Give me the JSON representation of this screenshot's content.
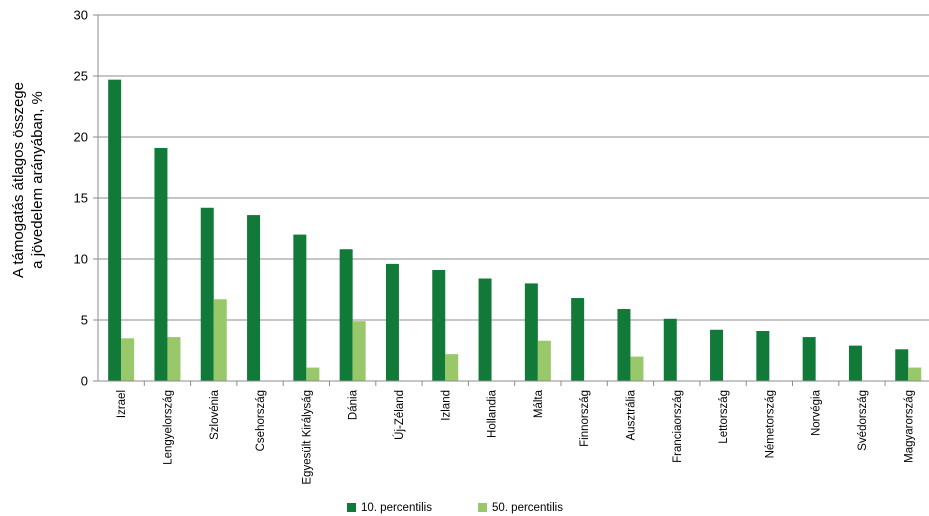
{
  "chart_data": {
    "type": "bar",
    "ylabel": [
      "A támogatás átlagos összege",
      "a jövedelem arányában, %"
    ],
    "ylim": [
      0,
      30
    ],
    "yticks": [
      0,
      5,
      10,
      15,
      20,
      25,
      30
    ],
    "grid": true,
    "legend_position": "bottom",
    "categories": [
      "Izrael",
      "Lengyelország",
      "Szlovénia",
      "Csehország",
      "Egyesült Királyság",
      "Dánia",
      "Új-Zéland",
      "Izland",
      "Hollandia",
      "Málta",
      "Finnország",
      "Ausztrália",
      "Franciaország",
      "Lettország",
      "Németország",
      "Norvégia",
      "Svédország",
      "Magyarország"
    ],
    "series": [
      {
        "name": "10. percentilis",
        "color": "#127a38",
        "values": [
          24.7,
          19.1,
          14.2,
          13.6,
          12.0,
          10.8,
          9.6,
          9.1,
          8.4,
          8.0,
          6.8,
          5.9,
          5.1,
          4.2,
          4.1,
          3.6,
          2.9,
          2.6
        ]
      },
      {
        "name": "50. percentilis",
        "color": "#98c869",
        "values": [
          3.5,
          3.6,
          6.7,
          null,
          1.1,
          4.9,
          null,
          2.2,
          null,
          3.3,
          null,
          2.0,
          null,
          null,
          null,
          null,
          null,
          1.1
        ]
      }
    ]
  }
}
